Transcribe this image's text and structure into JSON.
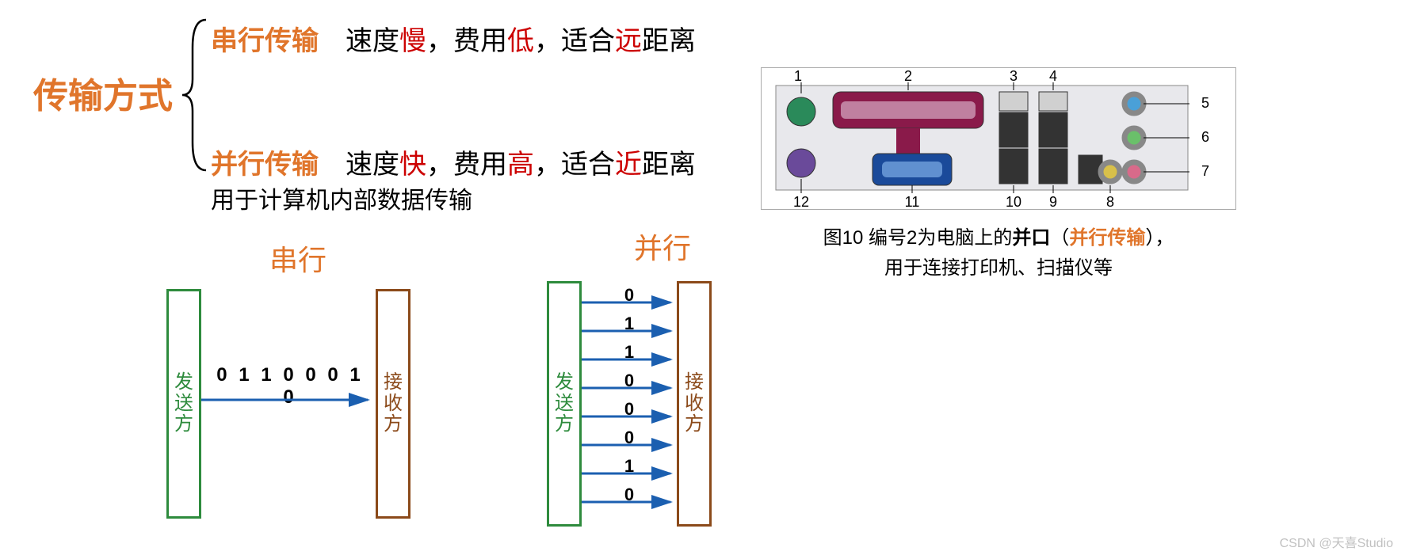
{
  "title": {
    "text": "传输方式",
    "color": "#e0752b",
    "fontsize": 44
  },
  "serial": {
    "name": "串行传输",
    "name_color": "#e0752b",
    "desc_parts": [
      {
        "t": "　速度",
        "c": "#000000"
      },
      {
        "t": "慢",
        "c": "#cc0000"
      },
      {
        "t": "，费用",
        "c": "#000000"
      },
      {
        "t": "低",
        "c": "#cc0000"
      },
      {
        "t": "，适合",
        "c": "#000000"
      },
      {
        "t": "远",
        "c": "#cc0000"
      },
      {
        "t": "距离",
        "c": "#000000"
      }
    ]
  },
  "parallel": {
    "name": "并行传输",
    "name_color": "#e0752b",
    "desc_parts": [
      {
        "t": "　速度",
        "c": "#000000"
      },
      {
        "t": "快",
        "c": "#cc0000"
      },
      {
        "t": "，费用",
        "c": "#000000"
      },
      {
        "t": "高",
        "c": "#cc0000"
      },
      {
        "t": "，适合",
        "c": "#000000"
      },
      {
        "t": "近",
        "c": "#cc0000"
      },
      {
        "t": "距离",
        "c": "#000000"
      }
    ],
    "extra": "用于计算机内部数据传输"
  },
  "diagram_serial": {
    "title": "串行",
    "title_color": "#e0752b",
    "sender_label": "发送方",
    "sender_border": "#2e8b3d",
    "recv_label": "接收方",
    "recv_border": "#8b4a1a",
    "bits": "0 1 1 0 0 0 1 0",
    "arrow_color": "#1b5fb0"
  },
  "diagram_parallel": {
    "title": "并行",
    "title_color": "#e0752b",
    "sender_label": "发送方",
    "sender_border": "#2e8b3d",
    "recv_label": "接收方",
    "recv_border": "#8b4a1a",
    "bits": [
      "0",
      "1",
      "1",
      "0",
      "0",
      "0",
      "1",
      "0"
    ],
    "arrow_color": "#1b5fb0"
  },
  "io_panel": {
    "labels": [
      "1",
      "2",
      "3",
      "4",
      "5",
      "6",
      "7",
      "8",
      "9",
      "10",
      "11",
      "12"
    ],
    "caption_prefix": "图10  编号2为电脑上的",
    "caption_bold": "并口",
    "caption_paren_l": "（",
    "caption_highlight": "并行传输",
    "caption_paren_r": "），",
    "caption_line2": "用于连接打印机、扫描仪等",
    "panel_bg": "#e8e8ec",
    "parallel_port_color": "#8a1a4a",
    "vga_color": "#1a4a9a",
    "usb_color": "#333333",
    "ps2_green": "#2a8a5a",
    "ps2_purple": "#6a4a9a",
    "audio_blue": "#4aa0d8",
    "audio_green": "#6ac06a",
    "audio_pink": "#d86a8a",
    "audio_yellow": "#d8c04a"
  },
  "watermark": "CSDN @天喜Studio"
}
